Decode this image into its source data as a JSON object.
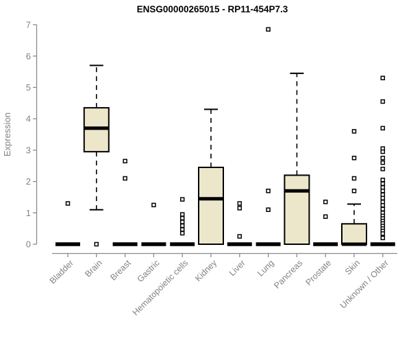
{
  "colors": {
    "box_fill": "#ece7cb",
    "box_stroke": "#000000",
    "collapsed_bar": "#000000",
    "median": "#000000",
    "whisker": "#000000",
    "outlier_fill": "#ffffff",
    "outlier_stroke": "#000000",
    "axis_line": "#8a8a8a",
    "axis_text": "#828282",
    "title_text": "#000000"
  },
  "chart_data": {
    "type": "boxplot",
    "title": "ENSG00000265015 - RP11-454P7.3",
    "ylabel": "Expression",
    "xlabel": "",
    "ylim": [
      0,
      7
    ],
    "yticks": [
      0,
      1,
      2,
      3,
      4,
      5,
      6,
      7
    ],
    "grid": "off",
    "legend": "none",
    "categories": [
      "Bladder",
      "Brain",
      "Breast",
      "Gastric",
      "Hematopoietic cells",
      "Kidney",
      "Liver",
      "Lung",
      "Pancreas",
      "Prostate",
      "Skin",
      "Unknown / Other"
    ],
    "series": [
      {
        "category": "Bladder",
        "q1": 0,
        "median": 0,
        "q3": 0,
        "whisker_low": 0,
        "whisker_high": 0,
        "outliers": [
          1.3
        ]
      },
      {
        "category": "Brain",
        "q1": 2.95,
        "median": 3.7,
        "q3": 4.35,
        "whisker_low": 1.1,
        "whisker_high": 5.7,
        "outliers": [
          0
        ]
      },
      {
        "category": "Breast",
        "q1": 0,
        "median": 0,
        "q3": 0,
        "whisker_low": 0,
        "whisker_high": 0,
        "outliers": [
          2.65,
          2.1
        ]
      },
      {
        "category": "Gastric",
        "q1": 0,
        "median": 0,
        "q3": 0,
        "whisker_low": 0,
        "whisker_high": 0,
        "outliers": [
          1.25
        ]
      },
      {
        "category": "Hematopoietic cells",
        "q1": 0,
        "median": 0,
        "q3": 0,
        "whisker_low": 0,
        "whisker_high": 0,
        "outliers": [
          1.43,
          0.95,
          0.83,
          0.71,
          0.59,
          0.47,
          0.35
        ]
      },
      {
        "category": "Kidney",
        "q1": 0,
        "median": 1.45,
        "q3": 2.45,
        "whisker_low": 0,
        "whisker_high": 4.3,
        "outliers": []
      },
      {
        "category": "Liver",
        "q1": 0,
        "median": 0,
        "q3": 0,
        "whisker_low": 0,
        "whisker_high": 0,
        "outliers": [
          1.3,
          1.15,
          0.25
        ]
      },
      {
        "category": "Lung",
        "q1": 0,
        "median": 0,
        "q3": 0,
        "whisker_low": 0,
        "whisker_high": 0,
        "outliers": [
          6.85,
          1.7,
          1.1
        ]
      },
      {
        "category": "Pancreas",
        "q1": 0,
        "median": 1.7,
        "q3": 2.2,
        "whisker_low": 0,
        "whisker_high": 5.45,
        "outliers": []
      },
      {
        "category": "Prostate",
        "q1": 0,
        "median": 0,
        "q3": 0,
        "whisker_low": 0,
        "whisker_high": 0,
        "outliers": [
          1.35,
          0.88
        ]
      },
      {
        "category": "Skin",
        "q1": 0,
        "median": 0,
        "q3": 0.65,
        "whisker_low": 0,
        "whisker_high": 1.28,
        "outliers": [
          3.6,
          2.75,
          2.1,
          1.7
        ]
      },
      {
        "category": "Unknown / Other",
        "q1": 0,
        "median": 0,
        "q3": 0,
        "whisker_low": 0,
        "whisker_high": 0,
        "outliers": [
          5.3,
          4.55,
          3.7,
          3.05,
          2.95,
          2.75,
          2.6,
          2.4,
          2.05,
          1.93,
          1.81,
          1.7,
          1.58,
          1.47,
          1.35,
          1.24,
          1.12,
          1.0,
          0.9,
          0.82,
          0.74,
          0.66,
          0.58,
          0.5,
          0.42,
          0.34,
          0.2
        ]
      }
    ]
  }
}
